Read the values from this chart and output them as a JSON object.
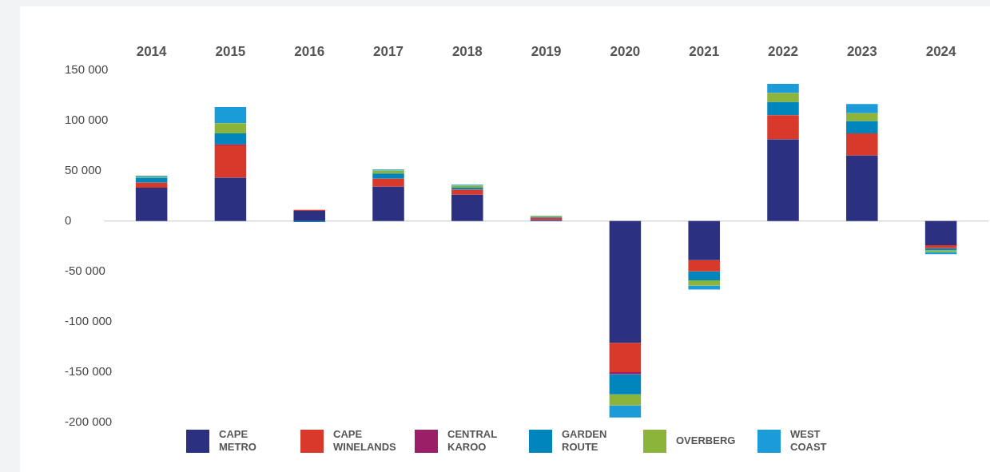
{
  "chart_data": {
    "type": "bar",
    "stacked": true,
    "categories": [
      "2014",
      "2015",
      "2016",
      "2017",
      "2018",
      "2019",
      "2020",
      "2021",
      "2022",
      "2023",
      "2024"
    ],
    "series": [
      {
        "name": "CAPE METRO",
        "color": "#2b3080",
        "values": [
          33000,
          43000,
          10000,
          34000,
          26000,
          1000,
          -121000,
          -39000,
          81000,
          65000,
          -24000
        ]
      },
      {
        "name": "CAPE WINELANDS",
        "color": "#d9392b",
        "values": [
          5000,
          32000,
          1000,
          8000,
          5000,
          2000,
          -29000,
          -11000,
          24000,
          22000,
          -3000
        ]
      },
      {
        "name": "CENTRAL KAROO",
        "color": "#9b1f66",
        "values": [
          0,
          1000,
          0,
          0,
          0,
          0,
          -2000,
          0,
          0,
          0,
          0
        ]
      },
      {
        "name": "GARDEN ROUTE",
        "color": "#0086bd",
        "values": [
          5000,
          11000,
          -1000,
          5000,
          2000,
          1000,
          -20000,
          -9000,
          13000,
          12000,
          -2000
        ]
      },
      {
        "name": "OVERBERG",
        "color": "#8db43a",
        "values": [
          1000,
          10000,
          0,
          3000,
          2000,
          1000,
          -11000,
          -5000,
          9000,
          8000,
          -2000
        ]
      },
      {
        "name": "WEST COAST",
        "color": "#1b9bd7",
        "values": [
          1000,
          16000,
          0,
          1000,
          1000,
          0,
          -12000,
          -4000,
          9000,
          9000,
          -2000
        ]
      }
    ],
    "ylim": [
      -200000,
      150000
    ],
    "yticks": [
      {
        "value": -200000,
        "label": "-200 000"
      },
      {
        "value": -150000,
        "label": "-150 000"
      },
      {
        "value": -100000,
        "label": "-100 000"
      },
      {
        "value": -50000,
        "label": "-50 000"
      },
      0,
      {
        "value": 50000,
        "label": "50 000"
      },
      {
        "value": 100000,
        "label": "100 000"
      },
      {
        "value": 150000,
        "label": "150 000"
      }
    ],
    "ref_lines": [
      {
        "axis": "y",
        "value": 0,
        "color": "#d9d9d9"
      }
    ],
    "grid": false,
    "legend": "bottom"
  }
}
